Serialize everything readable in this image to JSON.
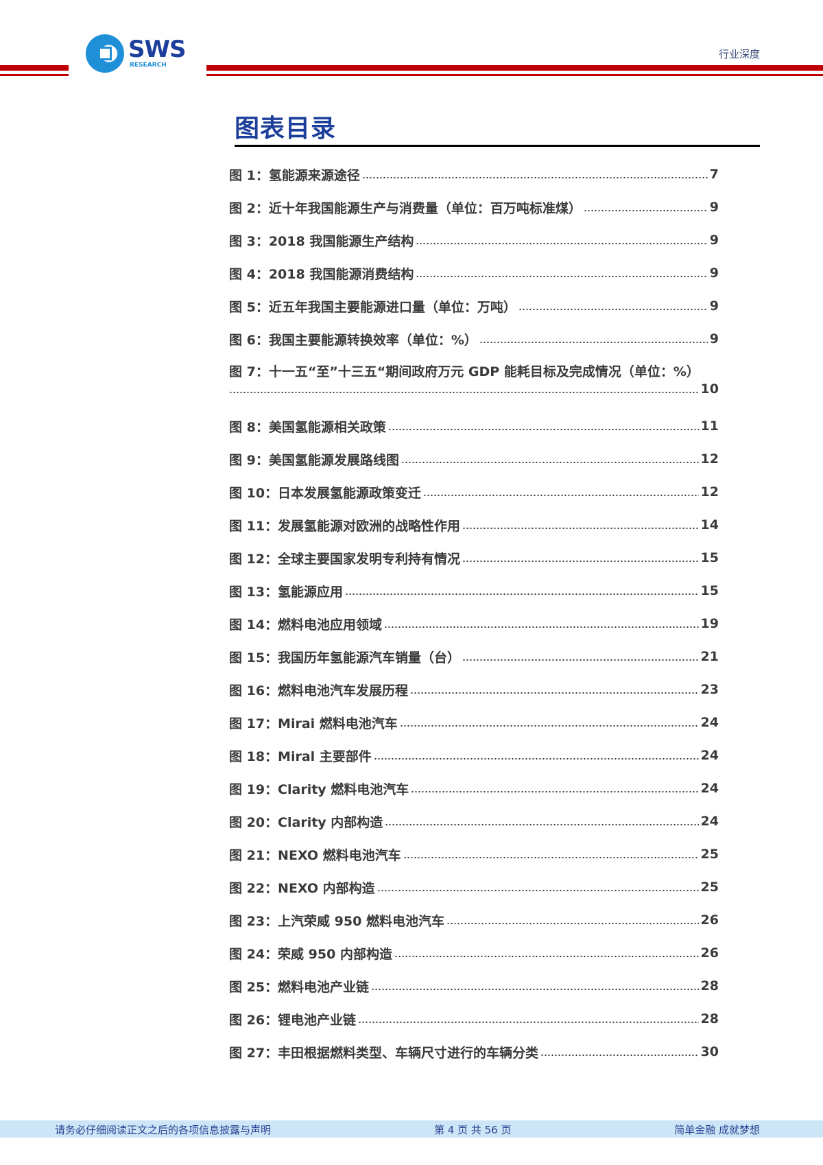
{
  "header": {
    "logo_text": "SWS",
    "logo_subtext": "RESEARCH",
    "doc_type": "行业深度",
    "accent_color": "#c00000"
  },
  "toc": {
    "title": "图表目录",
    "entries": [
      {
        "label": "图 1：氢能源来源途径",
        "page": "7"
      },
      {
        "label": "图 2：近十年我国能源生产与消费量（单位：百万吨标准煤）",
        "page": "9"
      },
      {
        "label": "图 3：2018 我国能源生产结构",
        "page": "9"
      },
      {
        "label": "图 4：2018 我国能源消费结构",
        "page": "9"
      },
      {
        "label": "图 5：近五年我国主要能源进口量（单位：万吨）",
        "page": "9"
      },
      {
        "label": "图 6：我国主要能源转换效率（单位：%）",
        "page": "9"
      },
      {
        "label": "图 7：十一五“至”十三五“期间政府万元 GDP 能耗目标及完成情况（单位：%）",
        "page": "10"
      },
      {
        "label": "图 8：美国氢能源相关政策",
        "page": "11"
      },
      {
        "label": "图 9：美国氢能源发展路线图",
        "page": "12"
      },
      {
        "label": "图 10：日本发展氢能源政策变迁",
        "page": "12"
      },
      {
        "label": "图 11：发展氢能源对欧洲的战略性作用",
        "page": "14"
      },
      {
        "label": "图 12：全球主要国家发明专利持有情况",
        "page": "15"
      },
      {
        "label": "图 13：氢能源应用",
        "page": "15"
      },
      {
        "label": "图 14：燃料电池应用领域",
        "page": "19"
      },
      {
        "label": "图 15：我国历年氢能源汽车销量（台）",
        "page": "21"
      },
      {
        "label": "图 16：燃料电池汽车发展历程",
        "page": "23"
      },
      {
        "label": "图 17：Mirai 燃料电池汽车",
        "page": "24"
      },
      {
        "label": "图 18：Miral 主要部件",
        "page": "24"
      },
      {
        "label": "图 19：Clarity 燃料电池汽车",
        "page": "24"
      },
      {
        "label": "图 20：Clarity 内部构造",
        "page": "24"
      },
      {
        "label": "图 21：NEXO 燃料电池汽车",
        "page": "25"
      },
      {
        "label": "图 22：NEXO 内部构造",
        "page": "25"
      },
      {
        "label": "图 23：上汽荣威 950 燃料电池汽车",
        "page": "26"
      },
      {
        "label": "图 24：荣威 950 内部构造",
        "page": "26"
      },
      {
        "label": "图 25：燃料电池产业链",
        "page": "28"
      },
      {
        "label": "图 26：锂电池产业链",
        "page": "28"
      },
      {
        "label": "图 27：丰田根据燃料类型、车辆尺寸进行的车辆分类",
        "page": "30"
      }
    ]
  },
  "footer": {
    "disclaimer": "请务必仔细阅读正文之后的各项信息披露与声明",
    "page_info": "第 4 页 共 56 页",
    "slogan": "简单金融 成就梦想"
  }
}
